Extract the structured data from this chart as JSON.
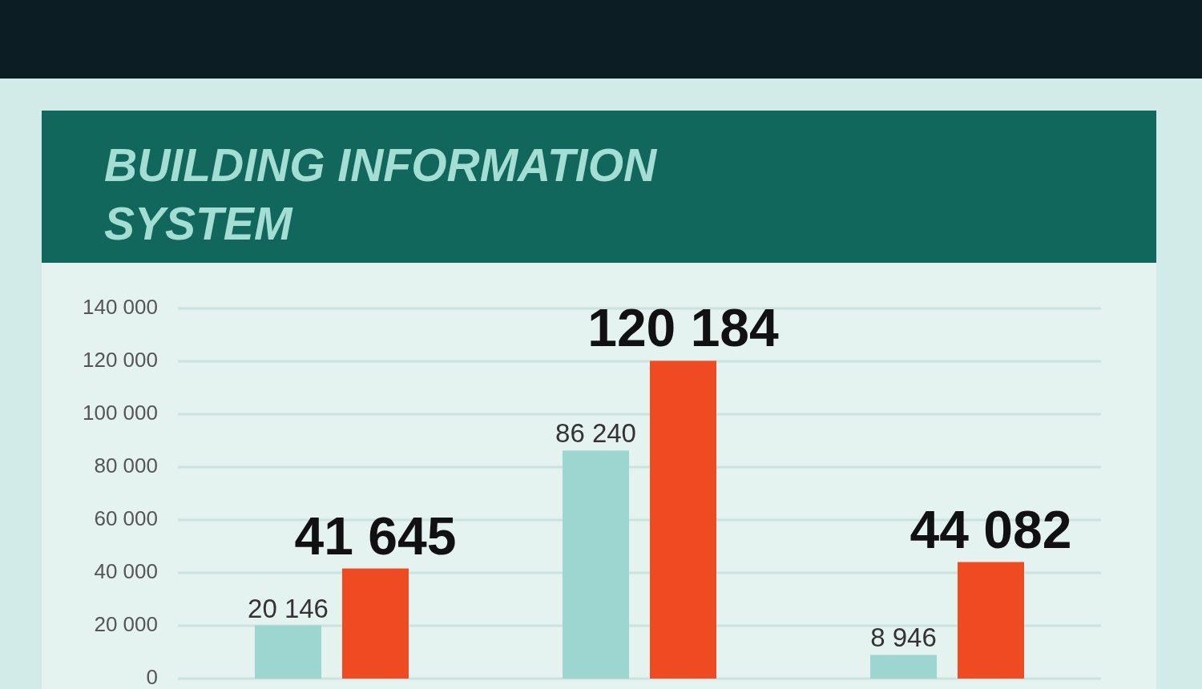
{
  "chart_data": {
    "type": "bar",
    "title": "BUILDING INFORMATION SYSTEM",
    "categories": [
      null,
      null,
      null
    ],
    "series": [
      {
        "color": "#9dd6d0",
        "values": [
          20146,
          86240,
          8946
        ],
        "value_labels": [
          "20 146",
          "86 240",
          "8 946"
        ]
      },
      {
        "color": "#ef4b22",
        "values": [
          41645,
          120184,
          44082
        ],
        "value_labels": [
          "41 645",
          "120 184",
          "44 082"
        ]
      }
    ],
    "ylim": [
      0,
      140000
    ],
    "yticks": [
      0,
      {
        "value": 20000,
        "label": "20 000"
      },
      {
        "value": 40000,
        "label": "40 000"
      },
      {
        "value": 60000,
        "label": "60 000"
      },
      {
        "value": 80000,
        "label": "80 000"
      },
      {
        "value": 100000,
        "label": "100 000"
      },
      {
        "value": 120000,
        "label": "120 000"
      },
      {
        "value": 140000,
        "label": "140 000"
      }
    ],
    "grid": "y"
  }
}
